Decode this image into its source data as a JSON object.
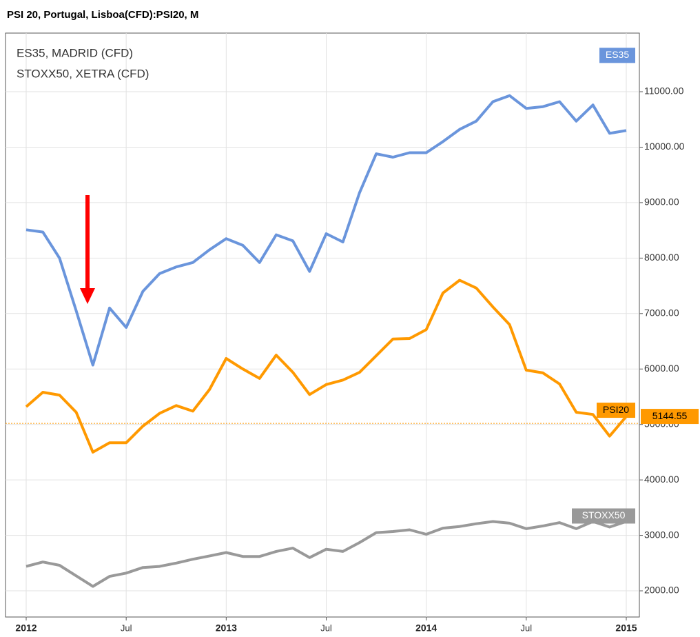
{
  "chart_data": {
    "type": "line",
    "title": "PSI 20, Portugal, Lisboa(CFD):PSI20, M",
    "legend": [
      "ES35, MADRID (CFD)",
      "STOXX50, XETRA (CFD)"
    ],
    "x": [
      "2012-01",
      "2012-02",
      "2012-03",
      "2012-04",
      "2012-05",
      "2012-06",
      "2012-07",
      "2012-08",
      "2012-09",
      "2012-10",
      "2012-11",
      "2012-12",
      "2013-01",
      "2013-02",
      "2013-03",
      "2013-04",
      "2013-05",
      "2013-06",
      "2013-07",
      "2013-08",
      "2013-09",
      "2013-10",
      "2013-11",
      "2013-12",
      "2014-01",
      "2014-02",
      "2014-03",
      "2014-04",
      "2014-05",
      "2014-06",
      "2014-07",
      "2014-08",
      "2014-09",
      "2014-10",
      "2014-11",
      "2014-12",
      "2015-01"
    ],
    "series": [
      {
        "name": "ES35",
        "color": "#6a95dc",
        "values": [
          8510,
          8470,
          8000,
          7050,
          6070,
          7100,
          6750,
          7400,
          7720,
          7840,
          7920,
          8150,
          8350,
          8230,
          7920,
          8420,
          8310,
          7760,
          8440,
          8290,
          9180,
          9880,
          9820,
          9900,
          9900,
          10100,
          10320,
          10470,
          10820,
          10930,
          10700,
          10730,
          10820,
          10470,
          10760,
          10250,
          10300
        ]
      },
      {
        "name": "PSI20",
        "color": "#ff9900",
        "values": [
          5320,
          5580,
          5530,
          5220,
          4500,
          4670,
          4670,
          4970,
          5200,
          5340,
          5240,
          5630,
          6190,
          6000,
          5830,
          6250,
          5940,
          5540,
          5720,
          5800,
          5940,
          6240,
          6540,
          6550,
          6710,
          7370,
          7600,
          7460,
          7120,
          6800,
          5980,
          5930,
          5730,
          5220,
          5180,
          4790,
          5144.55
        ]
      },
      {
        "name": "STOXX50",
        "color": "#999999",
        "values": [
          2440,
          2520,
          2460,
          2270,
          2080,
          2260,
          2320,
          2420,
          2440,
          2500,
          2570,
          2630,
          2690,
          2620,
          2620,
          2710,
          2770,
          2600,
          2750,
          2710,
          2870,
          3050,
          3070,
          3100,
          3020,
          3130,
          3160,
          3210,
          3250,
          3220,
          3120,
          3170,
          3230,
          3120,
          3250,
          3150,
          3250
        ]
      }
    ],
    "ylim": [
      1528,
      12057
    ],
    "yticks": [
      {
        "value": 2000,
        "label": "2000.00"
      },
      {
        "value": 3000,
        "label": "3000.00"
      },
      {
        "value": 4000,
        "label": "4000.00"
      },
      {
        "value": 5000,
        "label": "5000.00"
      },
      {
        "value": 6000,
        "label": "6000.00"
      },
      {
        "value": 7000,
        "label": "7000.00"
      },
      {
        "value": 8000,
        "label": "8000.00"
      },
      {
        "value": 9000,
        "label": "9000.00"
      },
      {
        "value": 10000,
        "label": "10000.00"
      },
      {
        "value": 11000,
        "label": "11000.00"
      }
    ],
    "xticks": [
      {
        "value": "2012-01",
        "label": "2012"
      },
      {
        "value": "2012-07",
        "label": "Jul"
      },
      {
        "value": "2013-01",
        "label": "2013"
      },
      {
        "value": "2013-07",
        "label": "Jul"
      },
      {
        "value": "2014-01",
        "label": "2014"
      },
      {
        "value": "2014-07",
        "label": "Jul"
      },
      {
        "value": "2015-01",
        "label": "2015"
      }
    ],
    "grid": true
  }
}
